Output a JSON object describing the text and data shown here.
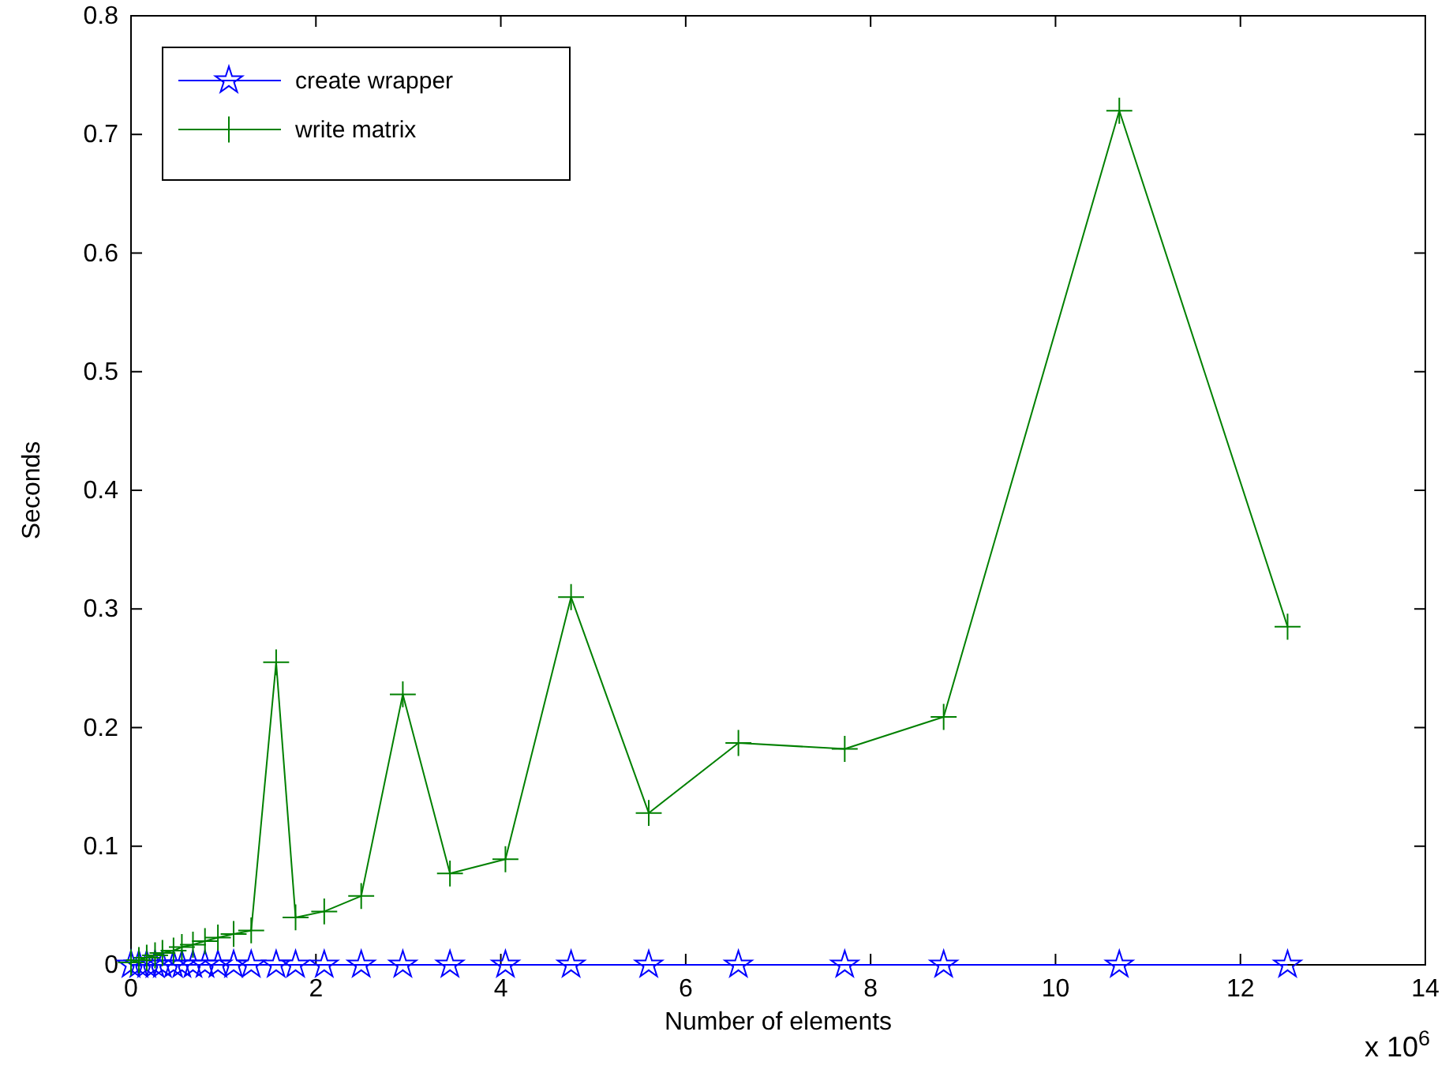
{
  "chart_data": {
    "type": "line",
    "xlabel": "Number of elements",
    "ylabel": "Seconds",
    "annotations": [
      "x 10$^{6}$"
    ],
    "x": [
      0,
      0.085,
      0.17,
      0.26,
      0.34,
      0.46,
      0.55,
      0.67,
      0.8,
      0.94,
      1.11,
      1.3,
      1.57,
      1.78,
      2.09,
      2.49,
      2.94,
      3.45,
      4.05,
      4.76,
      5.6,
      6.57,
      7.72,
      8.79,
      10.69,
      12.51
    ],
    "series": [
      {
        "name": "create wrapper",
        "color": "#0000ff",
        "marker": "star",
        "values": [
          0,
          0,
          0,
          0,
          0,
          0,
          0,
          0,
          0,
          0,
          0,
          0,
          0,
          0,
          0,
          0,
          0,
          0,
          0,
          0,
          0,
          0,
          0,
          0,
          0,
          0
        ]
      },
      {
        "name": "write matrix",
        "color": "#008000",
        "marker": "cross",
        "values": [
          0.002,
          0.004,
          0.006,
          0.008,
          0.01,
          0.012,
          0.015,
          0.017,
          0.02,
          0.023,
          0.026,
          0.029,
          0.255,
          0.04,
          0.045,
          0.058,
          0.228,
          0.077,
          0.089,
          0.31,
          0.128,
          0.187,
          0.182,
          0.209,
          0.72,
          0.285
        ]
      }
    ],
    "xlim": [
      0,
      14
    ],
    "xticks": [
      0,
      2,
      4,
      6,
      8,
      10,
      12,
      14
    ],
    "ylim": [
      0,
      0.8
    ],
    "yticks": [
      0,
      0.1,
      0.2,
      0.3,
      0.4,
      0.5,
      0.6,
      0.7,
      0.8
    ],
    "grid": false,
    "legend": "top left",
    "line_style": "solid"
  }
}
